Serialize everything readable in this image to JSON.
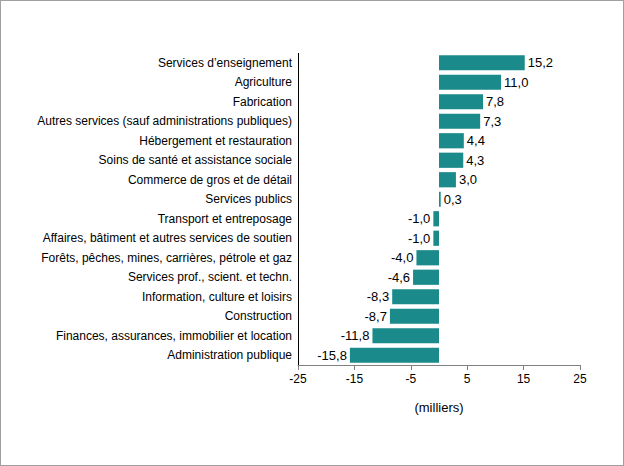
{
  "chart_data": {
    "type": "bar",
    "orientation": "horizontal",
    "categories": [
      "Services d’enseignement",
      "Agriculture",
      "Fabrication",
      "Autres services (sauf administrations publiques)",
      "Hébergement et restauration",
      "Soins de santé et assistance sociale",
      "Commerce de gros et de détail",
      "Services publics",
      "Transport et entreposage",
      "Affaires, bâtiment et autres services de soutien",
      "Forêts, pêches, mines, carrières, pétrole et gaz",
      "Services prof., scient. et techn.",
      "Information, culture et loisirs",
      "Construction",
      "Finances, assurances, immobilier et location",
      "Administration publique"
    ],
    "values": [
      15.2,
      11.0,
      7.8,
      7.3,
      4.4,
      4.3,
      3.0,
      0.3,
      -1.0,
      -1.0,
      -4.0,
      -4.6,
      -8.3,
      -8.7,
      -11.8,
      -15.8
    ],
    "value_labels": [
      "15,2",
      "11,0",
      "7,8",
      "7,3",
      "4,4",
      "4,3",
      "3,0",
      "0,3",
      "-1,0",
      "-1,0",
      "-4,0",
      "-4,6",
      "-8,3",
      "-8,7",
      "-11,8",
      "-15,8"
    ],
    "data_labels": true,
    "color": "#1b8a8a",
    "x_label": "(milliers)",
    "xlim": [
      -25,
      25
    ],
    "xticks": [
      -25,
      -15,
      -5,
      5,
      15,
      25
    ],
    "grid": false
  }
}
